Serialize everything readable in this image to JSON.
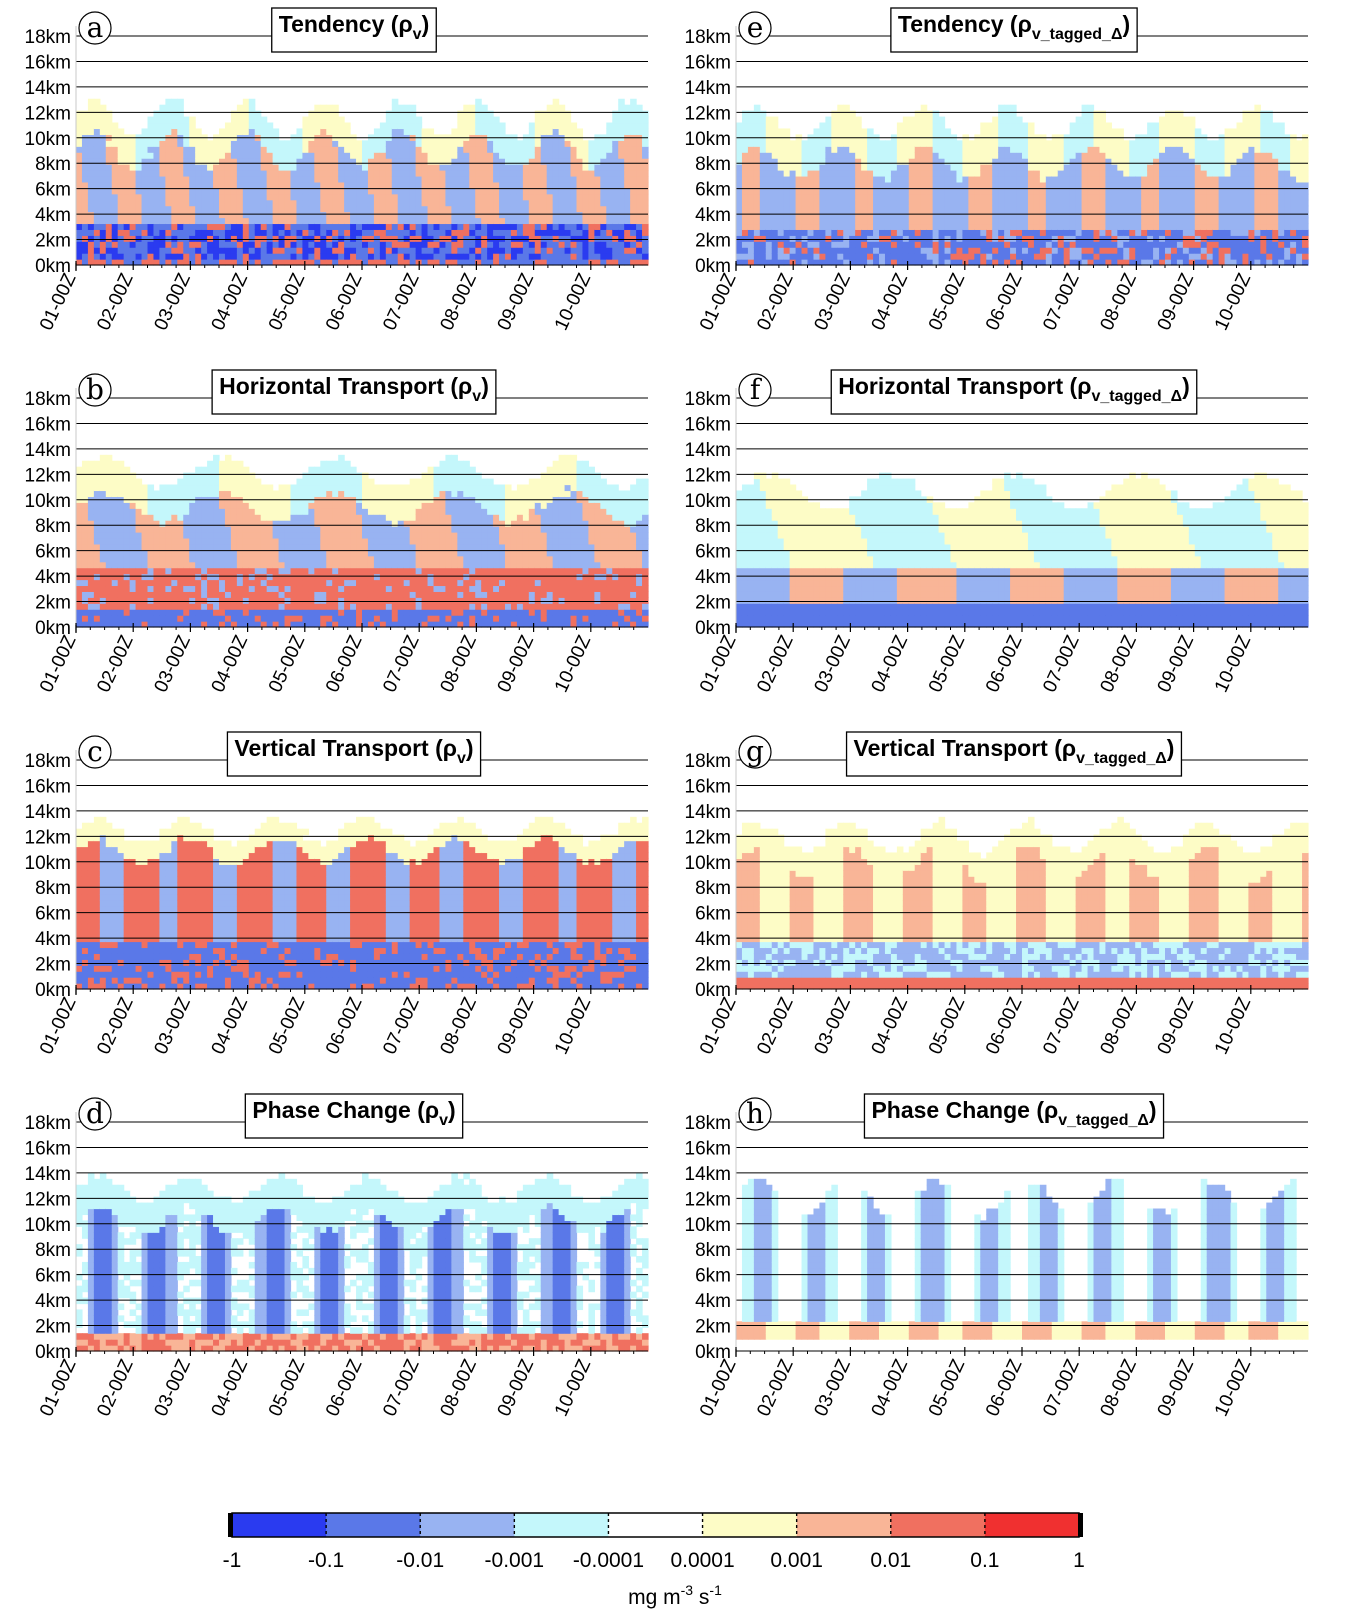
{
  "figure": {
    "colorbar": {
      "colors": [
        "#2a3bf0",
        "#5a78e8",
        "#98b3f2",
        "#c4f7fb",
        "#ffffff",
        "#fdfcc6",
        "#f9b597",
        "#f07060",
        "#f03030"
      ],
      "labels": [
        "-1",
        "-0.1",
        "-0.01",
        "-0.001",
        "-0.0001",
        "0.0001",
        "0.001",
        "0.01",
        "0.1",
        "1"
      ],
      "unit_base": "mg m",
      "unit_exp1": "-3",
      "unit_mid": " s",
      "unit_exp2": "-1"
    },
    "y_ticks": [
      "0km",
      "2km",
      "4km",
      "6km",
      "8km",
      "10km",
      "12km",
      "14km",
      "16km",
      "18km"
    ],
    "x_ticks": [
      "01-00Z",
      "02-00Z",
      "03-00Z",
      "04-00Z",
      "05-00Z",
      "06-00Z",
      "07-00Z",
      "08-00Z",
      "09-00Z",
      "10-00Z"
    ]
  },
  "chart_data": [
    {
      "panel": "a",
      "type": "heatmap",
      "title": "Tendency (ρ",
      "title_sub": "v",
      "title_end": ")",
      "variant": "tend",
      "x_ticks": [
        "01-00Z",
        "02-00Z",
        "03-00Z",
        "04-00Z",
        "05-00Z",
        "06-00Z",
        "07-00Z",
        "08-00Z",
        "09-00Z",
        "10-00Z"
      ],
      "y_ticks": [
        "0km",
        "2km",
        "4km",
        "6km",
        "8km",
        "10km",
        "12km",
        "14km",
        "16km",
        "18km"
      ],
      "ylim": [
        0,
        18
      ],
      "value_bins": [
        -1,
        -0.1,
        -0.01,
        -0.001,
        -0.0001,
        0.0001,
        0.001,
        0.01,
        0.1,
        1
      ]
    },
    {
      "panel": "b",
      "type": "heatmap",
      "title": "Horizontal Transport (ρ",
      "title_sub": "v",
      "title_end": ")",
      "variant": "horiz",
      "x_ticks": [
        "01-00Z",
        "02-00Z",
        "03-00Z",
        "04-00Z",
        "05-00Z",
        "06-00Z",
        "07-00Z",
        "08-00Z",
        "09-00Z",
        "10-00Z"
      ],
      "y_ticks": [
        "0km",
        "2km",
        "4km",
        "6km",
        "8km",
        "10km",
        "12km",
        "14km",
        "16km",
        "18km"
      ],
      "ylim": [
        0,
        18
      ],
      "value_bins": [
        -1,
        -0.1,
        -0.01,
        -0.001,
        -0.0001,
        0.0001,
        0.001,
        0.01,
        0.1,
        1
      ]
    },
    {
      "panel": "c",
      "type": "heatmap",
      "title": "Vertical Transport (ρ",
      "title_sub": "v",
      "title_end": ")",
      "variant": "vert",
      "x_ticks": [
        "01-00Z",
        "02-00Z",
        "03-00Z",
        "04-00Z",
        "05-00Z",
        "06-00Z",
        "07-00Z",
        "08-00Z",
        "09-00Z",
        "10-00Z"
      ],
      "y_ticks": [
        "0km",
        "2km",
        "4km",
        "6km",
        "8km",
        "10km",
        "12km",
        "14km",
        "16km",
        "18km"
      ],
      "ylim": [
        0,
        18
      ],
      "value_bins": [
        -1,
        -0.1,
        -0.01,
        -0.001,
        -0.0001,
        0.0001,
        0.001,
        0.01,
        0.1,
        1
      ]
    },
    {
      "panel": "d",
      "type": "heatmap",
      "title": "Phase Change (ρ",
      "title_sub": "v",
      "title_end": ")",
      "variant": "phase",
      "x_ticks": [
        "01-00Z",
        "02-00Z",
        "03-00Z",
        "04-00Z",
        "05-00Z",
        "06-00Z",
        "07-00Z",
        "08-00Z",
        "09-00Z",
        "10-00Z"
      ],
      "y_ticks": [
        "0km",
        "2km",
        "4km",
        "6km",
        "8km",
        "10km",
        "12km",
        "14km",
        "16km",
        "18km"
      ],
      "ylim": [
        0,
        18
      ],
      "value_bins": [
        -1,
        -0.1,
        -0.01,
        -0.001,
        -0.0001,
        0.0001,
        0.001,
        0.01,
        0.1,
        1
      ]
    },
    {
      "panel": "e",
      "type": "heatmap",
      "title": "Tendency (ρ",
      "title_sub": "v_tagged_Δ",
      "title_end": ")",
      "variant": "tend2",
      "x_ticks": [
        "01-00Z",
        "02-00Z",
        "03-00Z",
        "04-00Z",
        "05-00Z",
        "06-00Z",
        "07-00Z",
        "08-00Z",
        "09-00Z",
        "10-00Z"
      ],
      "y_ticks": [
        "0km",
        "2km",
        "4km",
        "6km",
        "8km",
        "10km",
        "12km",
        "14km",
        "16km",
        "18km"
      ],
      "ylim": [
        0,
        18
      ],
      "value_bins": [
        -1,
        -0.1,
        -0.01,
        -0.001,
        -0.0001,
        0.0001,
        0.001,
        0.01,
        0.1,
        1
      ]
    },
    {
      "panel": "f",
      "type": "heatmap",
      "title": "Horizontal Transport (ρ",
      "title_sub": "v_tagged_Δ",
      "title_end": ")",
      "variant": "horiz2",
      "x_ticks": [
        "01-00Z",
        "02-00Z",
        "03-00Z",
        "04-00Z",
        "05-00Z",
        "06-00Z",
        "07-00Z",
        "08-00Z",
        "09-00Z",
        "10-00Z"
      ],
      "y_ticks": [
        "0km",
        "2km",
        "4km",
        "6km",
        "8km",
        "10km",
        "12km",
        "14km",
        "16km",
        "18km"
      ],
      "ylim": [
        0,
        18
      ],
      "value_bins": [
        -1,
        -0.1,
        -0.01,
        -0.001,
        -0.0001,
        0.0001,
        0.001,
        0.01,
        0.1,
        1
      ]
    },
    {
      "panel": "g",
      "type": "heatmap",
      "title": "Vertical Transport (ρ",
      "title_sub": "v_tagged_Δ",
      "title_end": ")",
      "variant": "vert2",
      "x_ticks": [
        "01-00Z",
        "02-00Z",
        "03-00Z",
        "04-00Z",
        "05-00Z",
        "06-00Z",
        "07-00Z",
        "08-00Z",
        "09-00Z",
        "10-00Z"
      ],
      "y_ticks": [
        "0km",
        "2km",
        "4km",
        "6km",
        "8km",
        "10km",
        "12km",
        "14km",
        "16km",
        "18km"
      ],
      "ylim": [
        0,
        18
      ],
      "value_bins": [
        -1,
        -0.1,
        -0.01,
        -0.001,
        -0.0001,
        0.0001,
        0.001,
        0.01,
        0.1,
        1
      ]
    },
    {
      "panel": "h",
      "type": "heatmap",
      "title": "Phase Change (ρ",
      "title_sub": "v_tagged_Δ",
      "title_end": ")",
      "variant": "phase2",
      "x_ticks": [
        "01-00Z",
        "02-00Z",
        "03-00Z",
        "04-00Z",
        "05-00Z",
        "06-00Z",
        "07-00Z",
        "08-00Z",
        "09-00Z",
        "10-00Z"
      ],
      "y_ticks": [
        "0km",
        "2km",
        "4km",
        "6km",
        "8km",
        "10km",
        "12km",
        "14km",
        "16km",
        "18km"
      ],
      "ylim": [
        0,
        18
      ],
      "value_bins": [
        -1,
        -0.1,
        -0.01,
        -0.001,
        -0.0001,
        0.0001,
        0.001,
        0.01,
        0.1,
        1
      ]
    }
  ]
}
